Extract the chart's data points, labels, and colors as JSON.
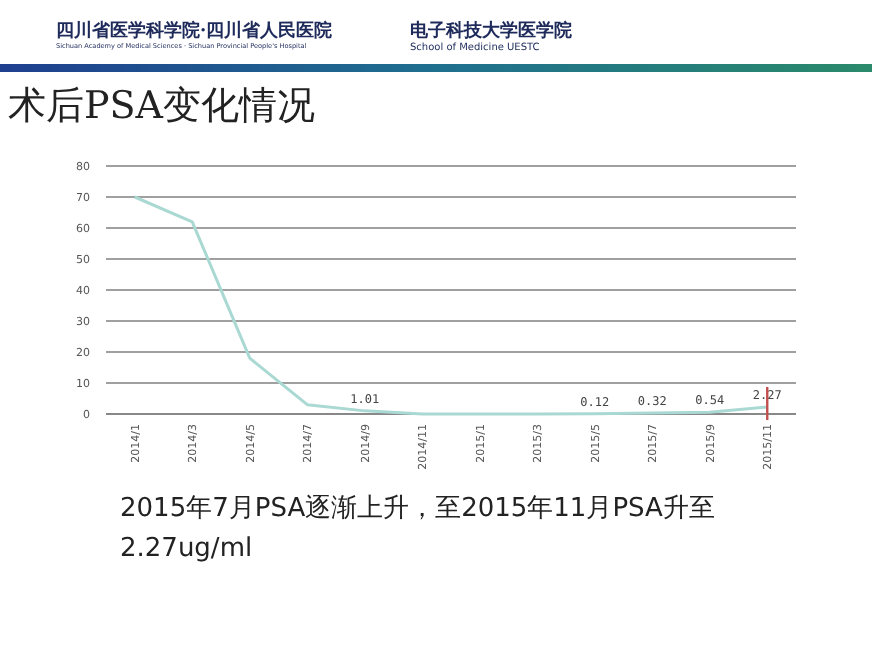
{
  "chart_data": {
    "type": "line",
    "title": "术后PSA变化情况",
    "categories": [
      "2014/1",
      "2014/3",
      "2014/5",
      "2014/7",
      "2014/9",
      "2014/11",
      "2015/1",
      "2015/3",
      "2015/5",
      "2015/7",
      "2015/9",
      "2015/11"
    ],
    "values": [
      70,
      62,
      18,
      3,
      1.01,
      0,
      0,
      0,
      0.12,
      0.32,
      0.54,
      2.27
    ],
    "value_labels": [
      null,
      null,
      null,
      null,
      "1.01",
      null,
      null,
      null,
      "0.12",
      "0.32",
      "0.54",
      "2.27"
    ],
    "color": "#a9d9d2",
    "ylim": [
      0,
      80
    ],
    "yticks": [
      0,
      10,
      20,
      30,
      40,
      50,
      60,
      70,
      80
    ],
    "grid": "y",
    "ref_lines": [
      {
        "axis": "x",
        "value": "2015/11",
        "color": "#c0504d"
      }
    ],
    "annotations": [
      "四川省医学科学院·四川省人民医院",
      "Sichuan Academy of Medical Sciences · Sichuan Provincial People's Hospital",
      "电子科技大学医学院",
      "School of Medicine UESTC",
      "2015年7月PSA逐渐上升，至2015年11月PSA升至 2.27ug/ml"
    ]
  }
}
